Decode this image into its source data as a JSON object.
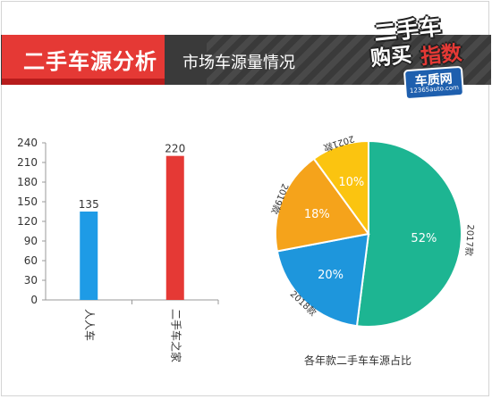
{
  "header": {
    "title": "二手车源分析",
    "subtitle": "市场车源量情况"
  },
  "logo": {
    "line1": "二手车",
    "line2a": "购买",
    "line2b": "指数",
    "badge": "车质网",
    "badge_sub": "12365auto.com"
  },
  "chart_data": [
    {
      "type": "bar",
      "categories": [
        "人人车",
        "二手车之家"
      ],
      "values": [
        135,
        220
      ],
      "ylim": [
        0,
        240
      ],
      "yticks": [
        0,
        30,
        60,
        90,
        120,
        150,
        180,
        210,
        240
      ],
      "colors": [
        "#1e9be6",
        "#e53935"
      ],
      "data_labels": true,
      "grid": false
    },
    {
      "type": "pie",
      "title": "各年款二手车车源占比",
      "slices": [
        {
          "label": "2017款",
          "value": 52,
          "display": "52%",
          "color": "#1db592"
        },
        {
          "label": "2018款",
          "value": 20,
          "display": "20%",
          "color": "#1e96dc"
        },
        {
          "label": "2019款",
          "value": 18,
          "display": "18%",
          "color": "#f5a31b"
        },
        {
          "label": "2021款",
          "value": 10,
          "display": "10%",
          "color": "#fbc410"
        }
      ]
    }
  ]
}
